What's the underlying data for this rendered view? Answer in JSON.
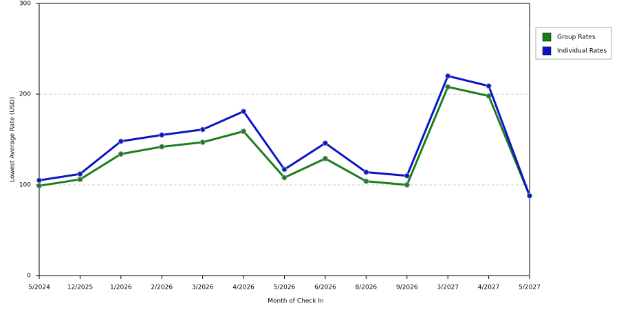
{
  "chart_data": {
    "type": "line",
    "x_label": "Month of Check In",
    "y_label": "Lowest Average Rate (USD)",
    "categories": [
      "5/2024",
      "12/2025",
      "1/2026",
      "2/2026",
      "3/2026",
      "4/2026",
      "5/2026",
      "6/2026",
      "8/2026",
      "9/2026",
      "3/2027",
      "4/2027",
      "5/2027"
    ],
    "series": [
      {
        "name": "Group Rates",
        "color": "#1b7d1b",
        "values": [
          99,
          106,
          134,
          142,
          147,
          159,
          108,
          129,
          104,
          100,
          208,
          198,
          88
        ]
      },
      {
        "name": "Individual Rates",
        "color": "#0a14c8",
        "values": [
          105,
          112,
          148,
          155,
          161,
          181,
          117,
          146,
          114,
          110,
          220,
          209,
          88
        ]
      }
    ],
    "ylim": [
      0,
      300
    ],
    "yticks": [
      0,
      100,
      200,
      300
    ],
    "grid": true,
    "legend": "top-right"
  }
}
